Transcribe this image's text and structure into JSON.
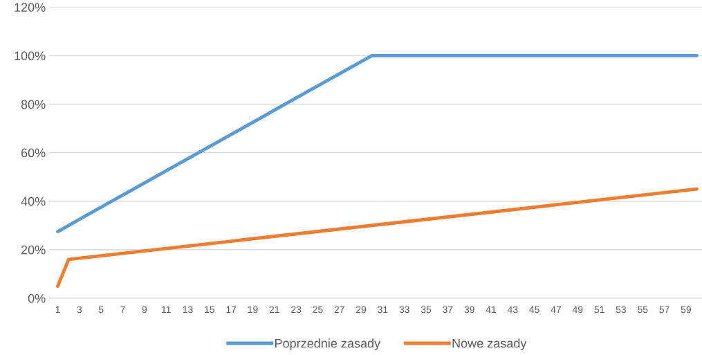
{
  "chart_data": {
    "type": "line",
    "categories": [
      "1",
      null,
      "3",
      null,
      "5",
      null,
      "7",
      null,
      "9",
      null,
      "11",
      null,
      "13",
      null,
      "15",
      null,
      "17",
      null,
      "19",
      null,
      "21",
      null,
      "23",
      null,
      "25",
      null,
      "27",
      null,
      "29",
      null,
      "31",
      null,
      "33",
      null,
      "35",
      null,
      "37",
      null,
      "39",
      null,
      "41",
      null,
      "43",
      null,
      "45",
      null,
      "47",
      null,
      "49",
      null,
      "51",
      null,
      "53",
      null,
      "55",
      null,
      "57",
      null,
      "59",
      null
    ],
    "series": [
      {
        "name": "Poprzednie zasady",
        "color": "#5b9bd5",
        "values": [
          27.5,
          30,
          32.5,
          35,
          37.5,
          40,
          42.5,
          45,
          47.5,
          50,
          52.5,
          55,
          57.5,
          60,
          62.5,
          65,
          67.5,
          70,
          72.5,
          75,
          77.5,
          80,
          82.5,
          85,
          87.5,
          90,
          92.5,
          95,
          97.5,
          100,
          100,
          100,
          100,
          100,
          100,
          100,
          100,
          100,
          100,
          100,
          100,
          100,
          100,
          100,
          100,
          100,
          100,
          100,
          100,
          100,
          100,
          100,
          100,
          100,
          100,
          100,
          100,
          100,
          100,
          100
        ]
      },
      {
        "name": "Nowe zasady",
        "color": "#ed7d31",
        "values": [
          5,
          16,
          16.5,
          17,
          17.5,
          18,
          18.5,
          19,
          19.5,
          20,
          20.5,
          21,
          21.5,
          22,
          22.5,
          23,
          23.5,
          24,
          24.5,
          25,
          25.5,
          26,
          26.5,
          27,
          27.5,
          28,
          28.5,
          29,
          29.5,
          30,
          30.5,
          31,
          31.5,
          32,
          32.5,
          33,
          33.5,
          34,
          34.5,
          35,
          35.5,
          36,
          36.5,
          37,
          37.5,
          38,
          38.5,
          39,
          39.5,
          40,
          40.5,
          41,
          41.5,
          42,
          42.5,
          43,
          43.5,
          44,
          44.5,
          45
        ]
      }
    ],
    "ylim": [
      0,
      120
    ],
    "yticks": [
      {
        "value": 0,
        "label": "0%"
      },
      {
        "value": 20,
        "label": "20%"
      },
      {
        "value": 40,
        "label": "40%"
      },
      {
        "value": 60,
        "label": "60%"
      },
      {
        "value": 80,
        "label": "80%"
      },
      {
        "value": 100,
        "label": "100%"
      },
      {
        "value": 120,
        "label": "120%"
      }
    ],
    "grid": "y",
    "legend": "bottom",
    "marker": "none",
    "line_style": "solid"
  }
}
